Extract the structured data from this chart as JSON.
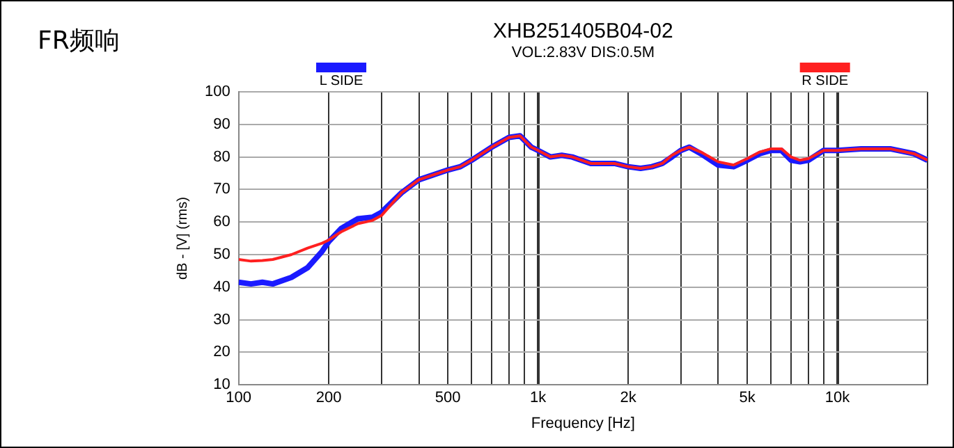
{
  "chart_data": {
    "type": "line",
    "title": "XHB251405B04-02",
    "subtitle": "VOL:2.83V DIS:0.5M",
    "xlabel": "Frequency [Hz]",
    "ylabel": "dB - [V] (rms)",
    "annotations": [
      "FR频响"
    ],
    "log": "x",
    "grid": true,
    "legend": "top",
    "marker": "none",
    "line_style": "solid",
    "xlim": [
      100,
      20000
    ],
    "ylim": [
      10,
      100
    ],
    "xticks": [
      100,
      200,
      {
        "value": 300,
        "label": null
      },
      {
        "value": 400,
        "label": null
      },
      500,
      {
        "value": 600,
        "label": null
      },
      {
        "value": 700,
        "label": null
      },
      {
        "value": 800,
        "label": null
      },
      {
        "value": 900,
        "label": null
      },
      {
        "value": 1000,
        "label": "1k"
      },
      {
        "value": 2000,
        "label": "2k"
      },
      {
        "value": 3000,
        "label": null
      },
      {
        "value": 4000,
        "label": null
      },
      {
        "value": 5000,
        "label": "5k"
      },
      {
        "value": 6000,
        "label": null
      },
      {
        "value": 7000,
        "label": null
      },
      {
        "value": 8000,
        "label": null
      },
      {
        "value": 9000,
        "label": null
      },
      {
        "value": 10000,
        "label": "10k"
      },
      {
        "value": 20000,
        "label": null
      }
    ],
    "yticks": [
      10,
      20,
      30,
      40,
      50,
      60,
      70,
      80,
      90,
      100
    ],
    "x": [
      100,
      110,
      120,
      130,
      150,
      170,
      190,
      200,
      220,
      250,
      280,
      300,
      350,
      400,
      500,
      550,
      600,
      700,
      800,
      870,
      950,
      1000,
      1100,
      1200,
      1300,
      1500,
      1800,
      2000,
      2200,
      2400,
      2600,
      2800,
      3000,
      3200,
      3500,
      4000,
      4500,
      5000,
      5500,
      6000,
      6500,
      7000,
      7500,
      8000,
      9000,
      10000,
      12000,
      15000,
      18000,
      20000
    ],
    "series": [
      {
        "name": "L SIDE",
        "color": "#1a1aff",
        "values": [
          41.5,
          41,
          41.5,
          41,
          43,
          46,
          51,
          54,
          58,
          61,
          61.5,
          63,
          69,
          73,
          76,
          77,
          79,
          83,
          86,
          86.5,
          83,
          82,
          80,
          80.5,
          80,
          78,
          78,
          77,
          76.5,
          77,
          78,
          80,
          82,
          83,
          81,
          77.5,
          77,
          79,
          81,
          82,
          82,
          79,
          78.5,
          79,
          82,
          82,
          82.5,
          82.5,
          81,
          79
        ]
      },
      {
        "name": "R SIDE",
        "color": "#ff2020",
        "values": [
          48.5,
          48,
          48.2,
          48.5,
          50,
          52,
          53.5,
          54.5,
          57,
          59.5,
          60.5,
          62,
          69,
          73,
          76,
          77,
          79,
          83,
          86,
          86.5,
          83,
          82,
          80,
          80.5,
          80,
          78,
          78,
          77,
          76.5,
          77,
          78,
          80.5,
          82,
          83,
          81.5,
          78.5,
          77.5,
          79.5,
          81.5,
          82.5,
          82.5,
          80,
          79,
          79.5,
          82,
          82,
          82.5,
          82.5,
          81,
          79
        ]
      }
    ]
  }
}
